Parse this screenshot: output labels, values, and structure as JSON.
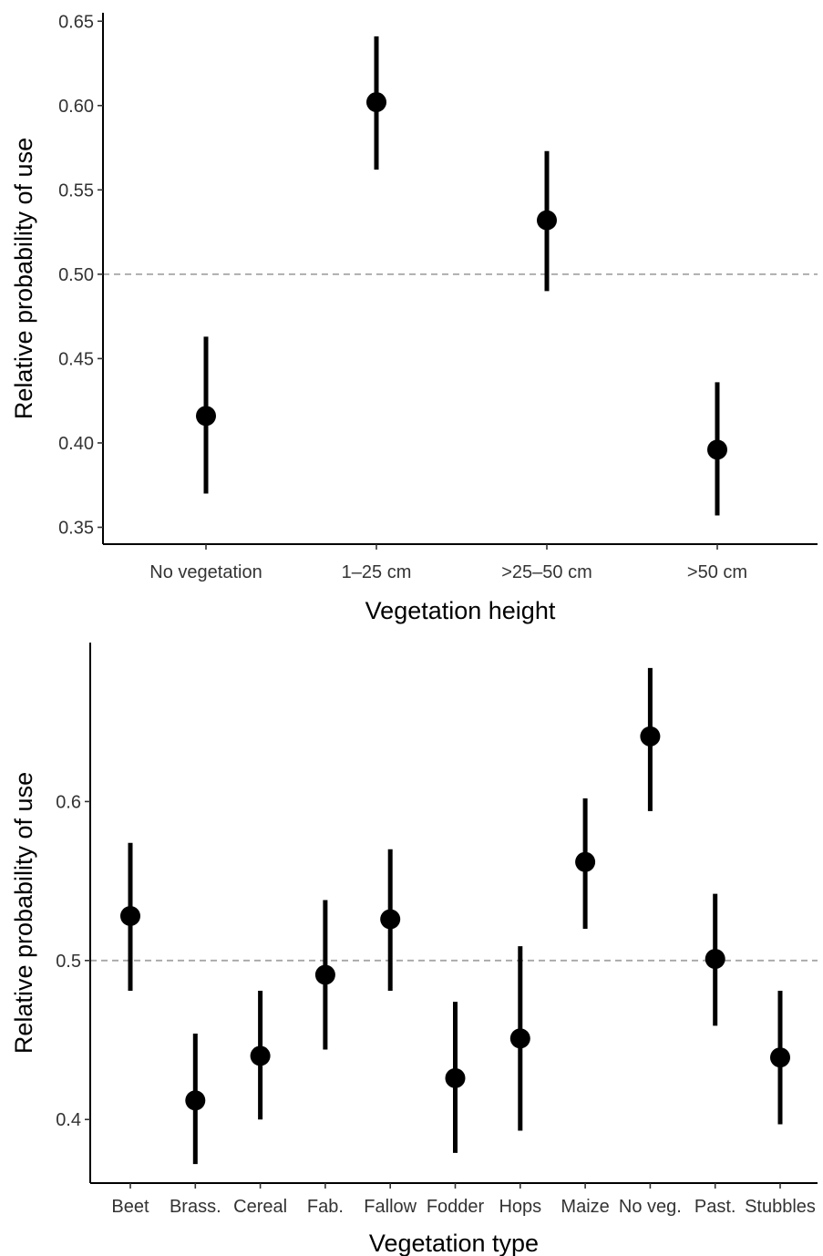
{
  "chart_data": [
    {
      "type": "scatter",
      "subtype": "point-range",
      "title": "",
      "xlabel": "Vegetation height",
      "ylabel": "Relative probability of use",
      "categories": [
        "No vegetation",
        "1–25 cm",
        ">25–50 cm",
        ">50 cm"
      ],
      "series": [
        {
          "values": [
            0.416,
            0.602,
            0.532,
            0.396
          ],
          "lower": [
            0.37,
            0.562,
            0.49,
            0.357
          ],
          "upper": [
            0.463,
            0.641,
            0.573,
            0.436
          ]
        }
      ],
      "ylim": [
        0.34,
        0.655
      ],
      "yticks": [
        0.35,
        0.4,
        0.45,
        0.5,
        0.55,
        0.6,
        0.65
      ],
      "ytick_labels": [
        "0.35",
        "0.40",
        "0.45",
        "0.50",
        "0.55",
        "0.60",
        "0.65"
      ],
      "reference_line": 0.5,
      "grid": false,
      "legend": "none"
    },
    {
      "type": "scatter",
      "subtype": "point-range",
      "title": "",
      "xlabel": "Vegetation type",
      "ylabel": "Relative probability of use",
      "categories": [
        "Beet",
        "Brass.",
        "Cereal",
        "Fab.",
        "Fallow",
        "Fodder",
        "Hops",
        "Maize",
        "No veg.",
        "Past.",
        "Stubbles"
      ],
      "series": [
        {
          "values": [
            0.528,
            0.412,
            0.44,
            0.491,
            0.526,
            0.426,
            0.451,
            0.562,
            0.641,
            0.501,
            0.439
          ],
          "lower": [
            0.481,
            0.372,
            0.4,
            0.444,
            0.481,
            0.379,
            0.393,
            0.52,
            0.594,
            0.459,
            0.397
          ],
          "upper": [
            0.574,
            0.454,
            0.481,
            0.538,
            0.57,
            0.474,
            0.509,
            0.602,
            0.684,
            0.542,
            0.481
          ]
        }
      ],
      "ylim": [
        0.36,
        0.7
      ],
      "yticks": [
        0.4,
        0.5,
        0.6
      ],
      "ytick_labels": [
        "0.4",
        "0.5",
        "0.6"
      ],
      "reference_line": 0.5,
      "grid": false,
      "legend": "none"
    }
  ],
  "colors": {
    "points": "#000000",
    "reference_line": "#a6a6a6",
    "axis": "#000000",
    "tick_text": "#333333"
  }
}
